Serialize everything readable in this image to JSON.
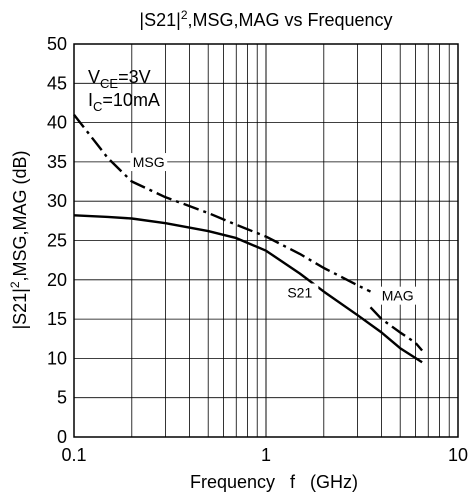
{
  "chart_data": {
    "type": "line",
    "title_parts": [
      "|S21|",
      "2",
      ",MSG,MAG vs Frequency"
    ],
    "xlabel": "Frequency   f   (GHz)",
    "ylabel_parts": [
      "|S21|",
      "2",
      ",MSG,MAG (dB)"
    ],
    "x_scale": "log",
    "xlim": [
      0.1,
      10
    ],
    "ylim": [
      0,
      50
    ],
    "x_ticks": [
      0.1,
      1,
      10
    ],
    "x_tick_labels": [
      "0.1",
      "1",
      "10"
    ],
    "y_ticks": [
      0,
      5,
      10,
      15,
      20,
      25,
      30,
      35,
      40,
      45,
      50
    ],
    "y_tick_labels": [
      "0",
      "5",
      "10",
      "15",
      "20",
      "25",
      "30",
      "35",
      "40",
      "45",
      "50"
    ],
    "grid": true,
    "conditions": {
      "vce": {
        "main": "V",
        "sub": "CE",
        "rest": "=3V"
      },
      "ic": {
        "main": "I",
        "sub": "C",
        "rest": "=10mA"
      }
    },
    "series": [
      {
        "name": "MSG",
        "style": "dash-dot",
        "x": [
          0.1,
          0.15,
          0.2,
          0.3,
          0.5,
          0.7,
          1.0,
          1.5,
          2.0,
          2.5,
          3.0,
          3.5
        ],
        "y": [
          41.0,
          35.5,
          32.5,
          30.5,
          28.5,
          27.0,
          25.5,
          23.3,
          21.5,
          20.3,
          19.3,
          18.5
        ]
      },
      {
        "name": "MAG",
        "style": "dash-dot",
        "x": [
          3.5,
          4.0,
          5.0,
          6.0,
          6.5
        ],
        "y": [
          16.5,
          15.0,
          13.3,
          12.0,
          11.0
        ]
      },
      {
        "name": "S21",
        "style": "solid",
        "x": [
          0.1,
          0.15,
          0.2,
          0.3,
          0.5,
          0.7,
          1.0,
          1.5,
          2.0,
          3.0,
          4.0,
          5.0,
          6.5
        ],
        "y": [
          28.2,
          28.0,
          27.8,
          27.2,
          26.2,
          25.3,
          23.7,
          20.8,
          18.5,
          15.5,
          13.3,
          11.3,
          9.5
        ]
      }
    ],
    "curve_labels": [
      {
        "text": "MSG",
        "x": 0.245,
        "y": 34.6
      },
      {
        "text": "S21",
        "x": 1.5,
        "y": 18.0
      },
      {
        "text": "MAG",
        "x": 4.85,
        "y": 17.6
      }
    ]
  }
}
